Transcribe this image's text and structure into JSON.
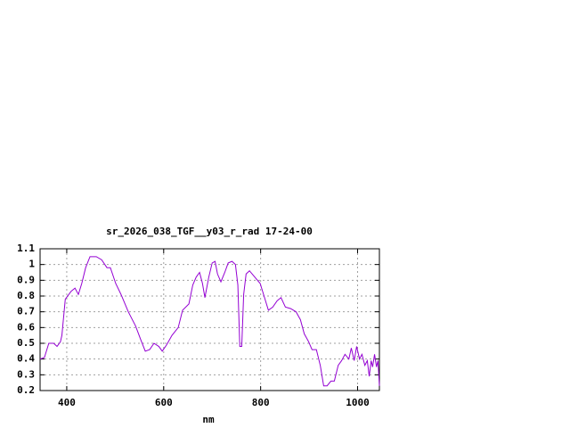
{
  "chart_data": {
    "type": "line",
    "title": "sr_2026_038_TGF__y03_r_rad 17-24-00",
    "x_label": "nm",
    "xlim": [
      345,
      1045
    ],
    "xticks": [
      400,
      600,
      800,
      1000
    ],
    "ylim": [
      0.2,
      1.1
    ],
    "yticks": [
      0.2,
      0.3,
      0.4,
      0.5,
      0.6,
      0.7,
      0.8,
      0.9,
      1,
      1.1
    ],
    "grid": true,
    "series": [
      {
        "color": "#9400d3",
        "x": [
          345,
          354,
          363,
          373,
          380,
          387,
          390,
          397,
          409,
          417,
          424,
          431,
          439,
          448,
          461,
          472,
          483,
          490,
          501,
          512,
          527,
          542,
          553,
          562,
          571,
          580,
          590,
          597,
          606,
          617,
          630,
          639,
          652,
          660,
          667,
          674,
          680,
          685,
          693,
          700,
          706,
          711,
          718,
          726,
          733,
          741,
          748,
          753,
          757,
          761,
          765,
          770,
          777,
          788,
          799,
          809,
          816,
          825,
          834,
          842,
          851,
          862,
          873,
          882,
          890,
          899,
          906,
          915,
          923,
          930,
          937,
          945,
          952,
          960,
          967,
          974,
          982,
          987,
          993,
          998,
          1004,
          1009,
          1015,
          1020,
          1024,
          1028,
          1031,
          1035,
          1039,
          1042,
          1045
        ],
        "values": [
          0.4,
          0.41,
          0.5,
          0.5,
          0.48,
          0.51,
          0.55,
          0.78,
          0.83,
          0.85,
          0.81,
          0.88,
          0.98,
          1.05,
          1.05,
          1.03,
          0.98,
          0.98,
          0.88,
          0.81,
          0.7,
          0.61,
          0.52,
          0.45,
          0.46,
          0.5,
          0.48,
          0.45,
          0.49,
          0.55,
          0.6,
          0.71,
          0.75,
          0.87,
          0.92,
          0.95,
          0.88,
          0.79,
          0.92,
          1.01,
          1.02,
          0.94,
          0.89,
          0.95,
          1.01,
          1.02,
          1.0,
          0.87,
          0.48,
          0.48,
          0.81,
          0.94,
          0.96,
          0.92,
          0.88,
          0.78,
          0.71,
          0.73,
          0.77,
          0.79,
          0.73,
          0.72,
          0.7,
          0.65,
          0.56,
          0.51,
          0.46,
          0.46,
          0.36,
          0.23,
          0.23,
          0.26,
          0.26,
          0.36,
          0.39,
          0.43,
          0.4,
          0.47,
          0.39,
          0.48,
          0.4,
          0.43,
          0.36,
          0.39,
          0.29,
          0.39,
          0.35,
          0.43,
          0.35,
          0.39,
          0.23
        ]
      }
    ]
  }
}
